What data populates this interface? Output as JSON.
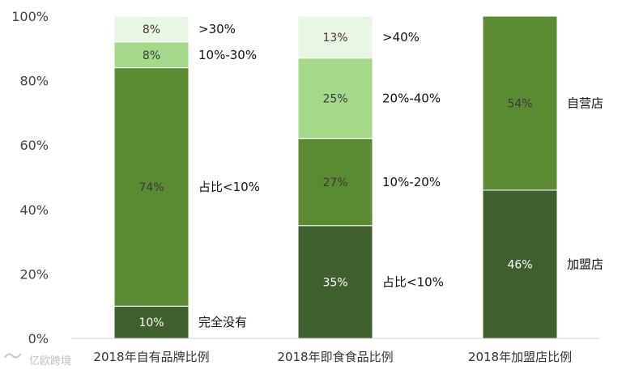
{
  "chart_data": {
    "type": "bar",
    "stacked": true,
    "ylim": [
      0,
      100
    ],
    "yticks": [
      "0%",
      "20%",
      "40%",
      "60%",
      "80%",
      "100%"
    ],
    "grid": false,
    "categories": [
      "2018年自有品牌比例",
      "2018年即食食品比例",
      "2018年加盟店比例"
    ],
    "bars": [
      {
        "category": "2018年自有品牌比例",
        "segments": [
          {
            "label": "完全没有",
            "value": 10,
            "value_label": "10%",
            "color": "#3f5f2e"
          },
          {
            "label": "占比<10%",
            "value": 74,
            "value_label": "74%",
            "color": "#5c8a33"
          },
          {
            "label": "10%-30%",
            "value": 8,
            "value_label": "8%",
            "color": "#a6d88c"
          },
          {
            "label": ">30%",
            "value": 8,
            "value_label": "8%",
            "color": "#eaf6e4"
          }
        ]
      },
      {
        "category": "2018年即食食品比例",
        "segments": [
          {
            "label": "占比<10%",
            "value": 35,
            "value_label": "35%",
            "color": "#3f5f2e"
          },
          {
            "label": "10%-20%",
            "value": 27,
            "value_label": "27%",
            "color": "#5c8a33"
          },
          {
            "label": "20%-40%",
            "value": 25,
            "value_label": "25%",
            "color": "#a6d88c"
          },
          {
            "label": ">40%",
            "value": 13,
            "value_label": "13%",
            "color": "#eaf6e4"
          }
        ]
      },
      {
        "category": "2018年加盟店比例",
        "segments": [
          {
            "label": "加盟店",
            "value": 46,
            "value_label": "46%",
            "color": "#3f5f2e"
          },
          {
            "label": "自营店",
            "value": 54,
            "value_label": "54%",
            "color": "#5c8a33"
          }
        ]
      }
    ]
  },
  "watermark": "亿欧跨境"
}
